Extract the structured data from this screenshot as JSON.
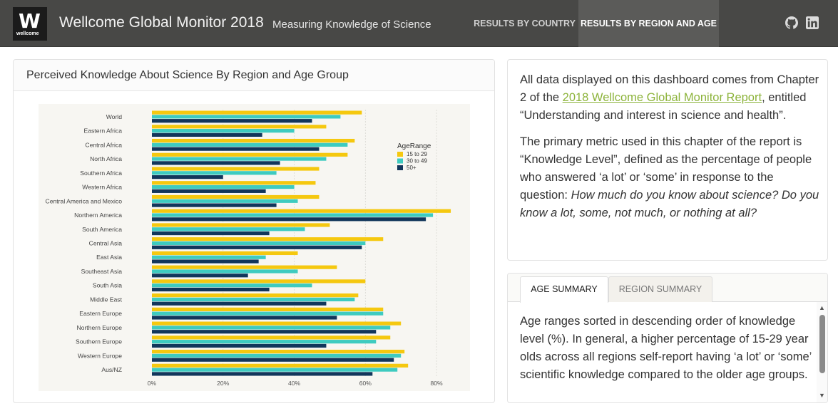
{
  "navbar": {
    "logo_letter": "W",
    "logo_sub": "wellcome",
    "title": "Wellcome Global Monitor 2018",
    "subtitle": "Measuring Knowledge of Science",
    "links": [
      {
        "label": "RESULTS BY COUNTRY",
        "active": false
      },
      {
        "label": "RESULTS BY REGION AND AGE",
        "active": true
      }
    ],
    "icons": [
      "github-icon",
      "linkedin-icon"
    ]
  },
  "chart_panel": {
    "title": "Perceived Knowledge About Science By Region and Age Group"
  },
  "chart_data": {
    "type": "bar",
    "orientation": "horizontal",
    "categories": [
      "World",
      "Eastern Africa",
      "Central Africa",
      "North Africa",
      "Southern Africa",
      "Western Africa",
      "Central America and Mexico",
      "Northern America",
      "South America",
      "Central Asia",
      "East Asia",
      "Southeast Asia",
      "South Asia",
      "Middle East",
      "Eastern Europe",
      "Northern Europe",
      "Southern Europe",
      "Western Europe",
      "Aus/NZ"
    ],
    "series": [
      {
        "name": "15 to 29",
        "color": "#f5c80f",
        "values": [
          59,
          49,
          57,
          55,
          47,
          46,
          47,
          84,
          50,
          65,
          41,
          52,
          60,
          58,
          65,
          70,
          67,
          71,
          72
        ]
      },
      {
        "name": "30 to 49",
        "color": "#3ecbc0",
        "values": [
          53,
          40,
          55,
          49,
          35,
          40,
          41,
          79,
          43,
          60,
          32,
          41,
          45,
          57,
          65,
          67,
          63,
          70,
          69
        ]
      },
      {
        "name": "50+",
        "color": "#12365b",
        "values": [
          45,
          31,
          47,
          36,
          20,
          32,
          35,
          77,
          33,
          59,
          30,
          27,
          33,
          49,
          52,
          63,
          49,
          68,
          62
        ]
      }
    ],
    "xlim": [
      0,
      88
    ],
    "xticks": [
      "0%",
      "20%",
      "40%",
      "60%",
      "80%"
    ],
    "xtick_values": [
      0,
      20,
      40,
      60,
      80
    ],
    "legend_title": "AgeRange",
    "legend_position": "right",
    "grid": true,
    "background": "#f7f6f2"
  },
  "info": {
    "p1_before": "All data displayed on this dashboard comes from Chapter 2 of the ",
    "p1_link": "2018 Wellcome Global Monitor Report",
    "p1_after": ", entitled “Understanding and interest in science and health”.",
    "p2_before": "The primary metric used in this chapter of the report is “Knowledge Level”, defined as the percentage of people who answered ‘a lot’ or ‘some’ in response to the question: ",
    "p2_question": "How much do you know about science? Do you know a lot, some, not much, or nothing at all?"
  },
  "summary": {
    "tabs": [
      {
        "label": "AGE SUMMARY",
        "active": true
      },
      {
        "label": "REGION SUMMARY",
        "active": false
      }
    ],
    "text": "Age ranges sorted in descending order of knowledge level (%). In general, a higher percentage of 15-29 year olds across all regions self-report having ‘a lot’ or ‘some’ scientific knowledge compared to the older age groups."
  }
}
